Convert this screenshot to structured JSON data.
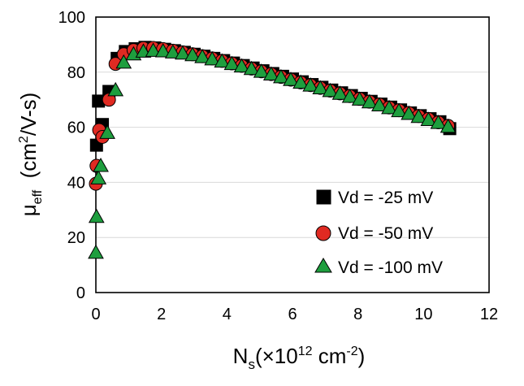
{
  "chart_data": {
    "type": "scatter",
    "ylabel": {
      "main": "μ",
      "sub": "eff",
      "rest": "  (cm",
      "sup": "2",
      "tail": "/V-s)"
    },
    "xlabel": {
      "main": "N",
      "sub": "s",
      "rest": "(×10",
      "sup": "12",
      "mid": " cm",
      "sup2": "-2",
      "tail": ")"
    },
    "xlim": [
      0,
      12
    ],
    "ylim": [
      0,
      100
    ],
    "xticks": [
      0,
      2,
      4,
      6,
      8,
      10,
      12
    ],
    "yticks": [
      0,
      20,
      40,
      60,
      80,
      100
    ],
    "grid": "horizontal",
    "legend_position": "bottom-right",
    "series": [
      {
        "name": "Vd = -25 mV",
        "marker": "square",
        "color": "#000000",
        "points": [
          [
            0.02,
            53.5
          ],
          [
            0.08,
            69.5
          ],
          [
            0.2,
            61
          ],
          [
            0.4,
            73
          ],
          [
            0.65,
            85
          ],
          [
            0.9,
            87.5
          ],
          [
            1.2,
            88.5
          ],
          [
            1.5,
            89
          ],
          [
            1.8,
            88.8
          ],
          [
            2.1,
            88.3
          ],
          [
            2.4,
            87.8
          ],
          [
            2.7,
            87.2
          ],
          [
            3.0,
            86.5
          ],
          [
            3.3,
            85.8
          ],
          [
            3.6,
            85
          ],
          [
            3.9,
            84.2
          ],
          [
            4.2,
            83.3
          ],
          [
            4.5,
            82.4
          ],
          [
            4.8,
            81.5
          ],
          [
            5.1,
            80.5
          ],
          [
            5.4,
            79.5
          ],
          [
            5.7,
            78.5
          ],
          [
            6.0,
            77.5
          ],
          [
            6.3,
            76.5
          ],
          [
            6.6,
            75.5
          ],
          [
            6.9,
            74.5
          ],
          [
            7.2,
            73.5
          ],
          [
            7.5,
            72.5
          ],
          [
            7.8,
            71.5
          ],
          [
            8.1,
            70.5
          ],
          [
            8.4,
            69.4
          ],
          [
            8.7,
            68.4
          ],
          [
            9.0,
            67.3
          ],
          [
            9.3,
            66.3
          ],
          [
            9.6,
            65.2
          ],
          [
            9.9,
            64.2
          ],
          [
            10.2,
            63.1
          ],
          [
            10.5,
            62
          ],
          [
            10.8,
            59.5
          ]
        ]
      },
      {
        "name": "Vd = -50 mV",
        "marker": "circle",
        "color": "#e02a22",
        "points": [
          [
            0.0,
            39.5
          ],
          [
            0.02,
            46
          ],
          [
            0.1,
            59
          ],
          [
            0.2,
            56.5
          ],
          [
            0.4,
            70
          ],
          [
            0.6,
            83
          ],
          [
            0.85,
            86.5
          ],
          [
            1.15,
            88
          ],
          [
            1.45,
            88.7
          ],
          [
            1.75,
            88.8
          ],
          [
            2.05,
            88.4
          ],
          [
            2.35,
            87.8
          ],
          [
            2.65,
            87.2
          ],
          [
            2.95,
            86.5
          ],
          [
            3.25,
            85.8
          ],
          [
            3.55,
            85
          ],
          [
            3.85,
            84.1
          ],
          [
            4.15,
            83.2
          ],
          [
            4.45,
            82.3
          ],
          [
            4.75,
            81.3
          ],
          [
            5.05,
            80.3
          ],
          [
            5.35,
            79.3
          ],
          [
            5.65,
            78.3
          ],
          [
            5.95,
            77.3
          ],
          [
            6.25,
            76.3
          ],
          [
            6.55,
            75.3
          ],
          [
            6.85,
            74.3
          ],
          [
            7.15,
            73.3
          ],
          [
            7.45,
            72.3
          ],
          [
            7.75,
            71.3
          ],
          [
            8.05,
            70.3
          ],
          [
            8.35,
            69.3
          ],
          [
            8.65,
            68.3
          ],
          [
            8.95,
            67.2
          ],
          [
            9.25,
            66.2
          ],
          [
            9.55,
            65.2
          ],
          [
            9.85,
            64.1
          ],
          [
            10.15,
            63
          ],
          [
            10.45,
            61.8
          ],
          [
            10.75,
            60.5
          ]
        ]
      },
      {
        "name": "Vd = -100 mV",
        "marker": "triangle",
        "color": "#1e9e3e",
        "points": [
          [
            0.0,
            14.5
          ],
          [
            0.02,
            27.5
          ],
          [
            0.08,
            41.5
          ],
          [
            0.15,
            46
          ],
          [
            0.35,
            58
          ],
          [
            0.6,
            73.5
          ],
          [
            0.85,
            83.5
          ],
          [
            1.15,
            86.5
          ],
          [
            1.45,
            87.5
          ],
          [
            1.75,
            87.8
          ],
          [
            2.05,
            87.6
          ],
          [
            2.35,
            87.2
          ],
          [
            2.65,
            86.8
          ],
          [
            2.95,
            86.2
          ],
          [
            3.25,
            85.5
          ],
          [
            3.55,
            84.7
          ],
          [
            3.85,
            83.9
          ],
          [
            4.15,
            83
          ],
          [
            4.45,
            82.1
          ],
          [
            4.75,
            81.2
          ],
          [
            5.05,
            80.2
          ],
          [
            5.35,
            79.2
          ],
          [
            5.65,
            78.2
          ],
          [
            5.95,
            77.2
          ],
          [
            6.25,
            76.2
          ],
          [
            6.55,
            75.2
          ],
          [
            6.85,
            74.2
          ],
          [
            7.15,
            73.2
          ],
          [
            7.45,
            72.2
          ],
          [
            7.75,
            71.1
          ],
          [
            8.05,
            70.1
          ],
          [
            8.35,
            69.1
          ],
          [
            8.65,
            68
          ],
          [
            8.95,
            67
          ],
          [
            9.25,
            65.9
          ],
          [
            9.55,
            64.9
          ],
          [
            9.85,
            63.8
          ],
          [
            10.15,
            62.7
          ],
          [
            10.45,
            61.6
          ],
          [
            10.75,
            60.2
          ]
        ]
      }
    ]
  }
}
